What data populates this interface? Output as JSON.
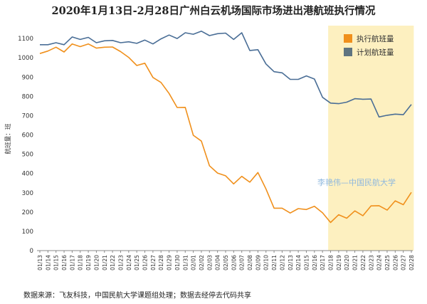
{
  "chart_data": {
    "type": "line",
    "title": "2020年1月13日-2月28日广州白云机场国际市场进出港航班执行情况",
    "ylabel": "航班量：班",
    "xlabel": "",
    "ylim": [
      0,
      1200
    ],
    "yticks": [
      0,
      100,
      200,
      300,
      400,
      500,
      600,
      700,
      800,
      900,
      1000,
      1100
    ],
    "grid": false,
    "legend_position": "top-right",
    "highlight_region": {
      "from": "02/18",
      "to": "02/28",
      "color": "#fdf0c0"
    },
    "categories": [
      "01/13",
      "01/14",
      "01/15",
      "01/16",
      "01/17",
      "01/18",
      "01/19",
      "01/20",
      "01/21",
      "01/22",
      "01/23",
      "01/24",
      "01/25",
      "01/26",
      "01/27",
      "01/28",
      "01/29",
      "01/30",
      "01/31",
      "02/01",
      "02/02",
      "02/03",
      "02/04",
      "02/05",
      "02/06",
      "02/07",
      "02/08",
      "02/09",
      "02/10",
      "02/11",
      "02/12",
      "02/13",
      "02/14",
      "02/15",
      "02/16",
      "02/17",
      "02/18",
      "02/19",
      "02/20",
      "02/21",
      "02/22",
      "02/23",
      "02/24",
      "02/25",
      "02/26",
      "02/27",
      "02/28"
    ],
    "series": [
      {
        "name": "执行航班量",
        "color": "#f0901c",
        "values": [
          1022,
          1035,
          1055,
          1030,
          1072,
          1058,
          1072,
          1050,
          1055,
          1056,
          1032,
          1002,
          960,
          972,
          898,
          872,
          815,
          742,
          743,
          598,
          568,
          440,
          402,
          388,
          346,
          385,
          355,
          405,
          320,
          220,
          220,
          195,
          218,
          213,
          230,
          196,
          146,
          186,
          168,
          206,
          181,
          232,
          233,
          210,
          258,
          238,
          302
        ]
      },
      {
        "name": "计划航班量",
        "color": "#4a6e96",
        "values": [
          1068,
          1068,
          1078,
          1068,
          1108,
          1095,
          1106,
          1078,
          1088,
          1090,
          1078,
          1083,
          1075,
          1092,
          1072,
          1098,
          1118,
          1100,
          1130,
          1122,
          1138,
          1115,
          1125,
          1128,
          1095,
          1130,
          1038,
          1042,
          968,
          928,
          922,
          888,
          888,
          906,
          890,
          795,
          765,
          762,
          770,
          788,
          785,
          786,
          693,
          702,
          708,
          705,
          758
        ]
      }
    ]
  },
  "watermark": "李艳伟—中国民航大学",
  "source_note": "数据来源：飞友科技，中国民航大学课题组处理；数据去经停去代码共享"
}
